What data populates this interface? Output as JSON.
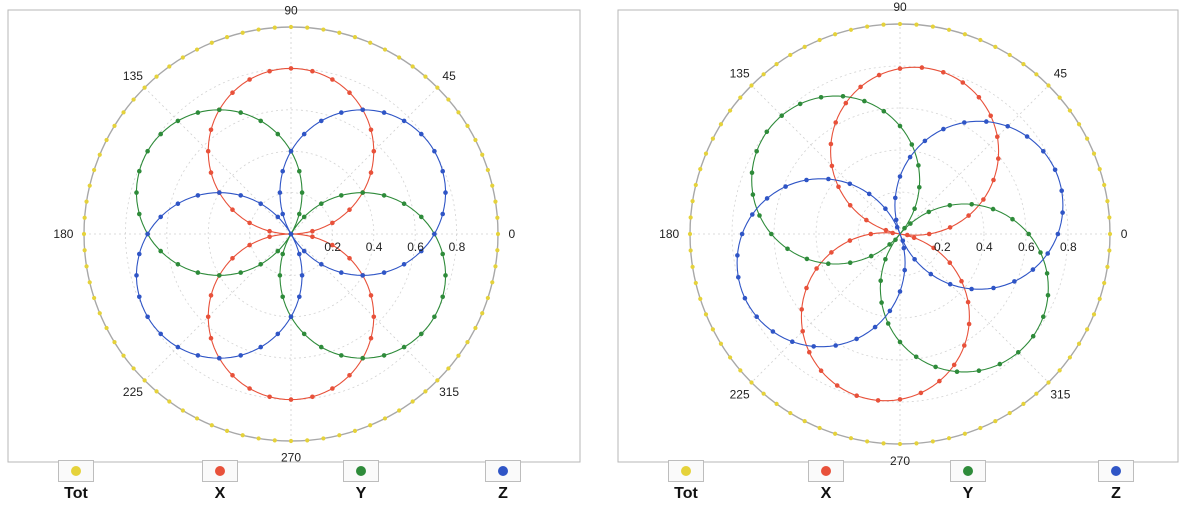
{
  "chart_data": [
    {
      "type": "polar",
      "radial_ticks": [
        "0.2",
        "0.4",
        "0.6",
        "0.8"
      ],
      "angle_labels": [
        "0",
        "45",
        "90",
        "135",
        "180",
        "225",
        "270",
        "315"
      ],
      "rlim": [
        0,
        1
      ],
      "grid": true,
      "legend_placement": "bottom",
      "series": [
        {
          "name": "Tot",
          "color": "#e5d23a",
          "values": "constant r = 1.0 at every angle"
        },
        {
          "name": "X",
          "color": "#e8513a",
          "values": "circle of diameter 0.8 with maximum r = 0.80 at theta = 90 and 270"
        },
        {
          "name": "Y",
          "color": "#2e8b3a",
          "values": "circle of diameter 0.8 with maximum r = 0.80 at theta = 150 and 330"
        },
        {
          "name": "Z",
          "color": "#2f55c6",
          "values": "circle of diameter 0.8 with maximum r = 0.80 at theta = 30 and 210"
        }
      ]
    },
    {
      "type": "polar",
      "radial_ticks": [
        "0.2",
        "0.4",
        "0.6",
        "0.8"
      ],
      "angle_labels": [
        "0",
        "45",
        "90",
        "135",
        "180",
        "225",
        "270",
        "315"
      ],
      "rlim": [
        0,
        1
      ],
      "grid": true,
      "legend_placement": "bottom",
      "series": [
        {
          "name": "Tot",
          "color": "#e5d23a",
          "values": "constant r = 1.0 at every angle"
        },
        {
          "name": "X",
          "color": "#e8513a",
          "values": "circle of diameter 0.8 with maximum r = 0.80 at theta = 80 and 260"
        },
        {
          "name": "Y",
          "color": "#2e8b3a",
          "values": "circle of diameter 0.8 with maximum r = 0.80 at theta = 140 and 320"
        },
        {
          "name": "Z",
          "color": "#2f55c6",
          "values": "circle of diameter 0.8 with maximum r = 0.80 at theta = 20 and 200"
        }
      ]
    }
  ],
  "legend": {
    "items": [
      {
        "label": "Tot",
        "color": "#e5d23a"
      },
      {
        "label": "X",
        "color": "#e8513a"
      },
      {
        "label": "Y",
        "color": "#2e8b3a"
      },
      {
        "label": "Z",
        "color": "#2f55c6"
      }
    ]
  }
}
